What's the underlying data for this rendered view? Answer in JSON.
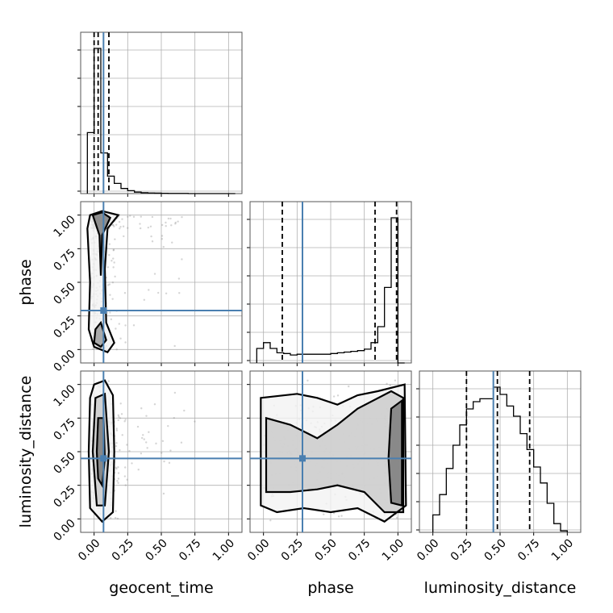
{
  "chart_data": {
    "type": "corner",
    "parameters": [
      "geocent_time",
      "phase",
      "luminosity_distance"
    ],
    "tick_labels": [
      "0.00",
      "0.25",
      "0.50",
      "0.75",
      "1.00"
    ],
    "axis_range": [
      -0.1,
      1.1
    ],
    "grid": true,
    "colors": {
      "truth": "#4a7fb0",
      "contour": "#000000",
      "density": "#000000"
    },
    "truths": {
      "geocent_time": 0.07,
      "phase": 0.29,
      "luminosity_distance": 0.45
    },
    "quantiles": {
      "geocent_time": [
        0.0,
        0.03,
        0.11
      ],
      "phase": [
        0.14,
        0.83,
        0.99
      ],
      "luminosity_distance": [
        0.25,
        0.48,
        0.72
      ]
    },
    "histograms": {
      "geocent_time": {
        "edges": [
          -0.05,
          0.0,
          0.05,
          0.1,
          0.15,
          0.2,
          0.25,
          0.3,
          0.35,
          0.4,
          0.45,
          0.5,
          0.55,
          0.6,
          0.65,
          0.7,
          0.75,
          0.8,
          0.85,
          0.9,
          0.95,
          1.0,
          1.05
        ],
        "counts": [
          0.42,
          1.0,
          0.28,
          0.12,
          0.07,
          0.035,
          0.02,
          0.01,
          0.006,
          0.004,
          0.003,
          0.002,
          0.001,
          0.001,
          0.001,
          0,
          0,
          0,
          0,
          0,
          0,
          0
        ]
      },
      "phase": {
        "edges": [
          -0.05,
          0.0,
          0.05,
          0.1,
          0.15,
          0.2,
          0.25,
          0.3,
          0.35,
          0.4,
          0.45,
          0.5,
          0.55,
          0.6,
          0.65,
          0.7,
          0.75,
          0.8,
          0.85,
          0.9,
          0.95,
          1.0,
          1.05
        ],
        "counts": [
          0.1,
          0.14,
          0.1,
          0.07,
          0.065,
          0.055,
          0.06,
          0.06,
          0.06,
          0.06,
          0.06,
          0.065,
          0.07,
          0.075,
          0.08,
          0.085,
          0.095,
          0.14,
          0.25,
          0.52,
          1.0,
          0
        ]
      },
      "luminosity_distance": {
        "edges": [
          0.0,
          0.05,
          0.1,
          0.15,
          0.2,
          0.25,
          0.3,
          0.35,
          0.4,
          0.45,
          0.5,
          0.55,
          0.6,
          0.65,
          0.7,
          0.75,
          0.8,
          0.85,
          0.9,
          0.95,
          1.0
        ],
        "counts": [
          0.12,
          0.26,
          0.44,
          0.6,
          0.74,
          0.85,
          0.9,
          0.92,
          0.92,
          1.0,
          0.95,
          0.87,
          0.8,
          0.68,
          0.57,
          0.45,
          0.34,
          0.2,
          0.06,
          0.01
        ]
      }
    },
    "contours_2d": {
      "phase_vs_geocent_time": [
        {
          "level": "outer",
          "points": [
            [
              -0.03,
              1.0
            ],
            [
              0.06,
              1.03
            ],
            [
              0.18,
              1.0
            ],
            [
              0.1,
              0.9
            ],
            [
              0.08,
              0.6
            ],
            [
              0.09,
              0.2
            ],
            [
              0.15,
              0.05
            ],
            [
              0.1,
              -0.02
            ],
            [
              0.0,
              0.02
            ],
            [
              -0.04,
              0.15
            ],
            [
              -0.03,
              0.5
            ],
            [
              -0.05,
              0.9
            ]
          ]
        },
        {
          "level": "inner",
          "points": [
            [
              -0.01,
              1.0
            ],
            [
              0.06,
              1.02
            ],
            [
              0.12,
              0.98
            ],
            [
              0.06,
              0.85
            ],
            [
              0.05,
              0.55
            ],
            [
              0.04,
              0.85
            ]
          ]
        },
        {
          "level": "inner-low",
          "points": [
            [
              0.0,
              0.05
            ],
            [
              0.05,
              0.02
            ],
            [
              0.09,
              0.07
            ],
            [
              0.05,
              0.2
            ],
            [
              0.01,
              0.15
            ]
          ]
        }
      ],
      "luminosity_distance_vs_geocent_time": [
        {
          "level": "outer",
          "points": [
            [
              0.0,
              1.0
            ],
            [
              0.08,
              1.03
            ],
            [
              0.14,
              0.92
            ],
            [
              0.15,
              0.5
            ],
            [
              0.14,
              0.05
            ],
            [
              0.06,
              -0.02
            ],
            [
              -0.03,
              0.08
            ],
            [
              -0.04,
              0.5
            ],
            [
              -0.03,
              0.9
            ]
          ]
        },
        {
          "level": "middle",
          "points": [
            [
              0.01,
              0.9
            ],
            [
              0.08,
              0.93
            ],
            [
              0.11,
              0.5
            ],
            [
              0.08,
              0.1
            ],
            [
              0.02,
              0.1
            ],
            [
              -0.01,
              0.5
            ]
          ]
        },
        {
          "level": "inner",
          "points": [
            [
              0.03,
              0.75
            ],
            [
              0.07,
              0.75
            ],
            [
              0.08,
              0.45
            ],
            [
              0.06,
              0.25
            ],
            [
              0.03,
              0.3
            ],
            [
              0.02,
              0.5
            ]
          ]
        }
      ],
      "luminosity_distance_vs_phase": [
        {
          "level": "outer",
          "points": [
            [
              -0.02,
              0.9
            ],
            [
              0.25,
              0.93
            ],
            [
              0.4,
              0.9
            ],
            [
              0.55,
              0.85
            ],
            [
              0.7,
              0.92
            ],
            [
              0.85,
              0.95
            ],
            [
              1.05,
              1.0
            ],
            [
              1.06,
              0.1
            ],
            [
              0.9,
              -0.02
            ],
            [
              0.7,
              0.08
            ],
            [
              0.5,
              0.05
            ],
            [
              0.3,
              0.08
            ],
            [
              0.1,
              0.05
            ],
            [
              -0.02,
              0.1
            ]
          ]
        },
        {
          "level": "middle",
          "points": [
            [
              0.02,
              0.75
            ],
            [
              0.2,
              0.7
            ],
            [
              0.4,
              0.6
            ],
            [
              0.55,
              0.7
            ],
            [
              0.7,
              0.82
            ],
            [
              0.95,
              0.95
            ],
            [
              1.04,
              0.9
            ],
            [
              1.04,
              0.05
            ],
            [
              0.9,
              0.05
            ],
            [
              0.75,
              0.2
            ],
            [
              0.55,
              0.25
            ],
            [
              0.4,
              0.22
            ],
            [
              0.2,
              0.2
            ],
            [
              0.02,
              0.2
            ]
          ]
        },
        {
          "level": "inner",
          "points": [
            [
              0.95,
              0.82
            ],
            [
              1.03,
              0.88
            ],
            [
              1.03,
              0.1
            ],
            [
              0.95,
              0.12
            ],
            [
              0.93,
              0.45
            ]
          ]
        }
      ]
    }
  }
}
